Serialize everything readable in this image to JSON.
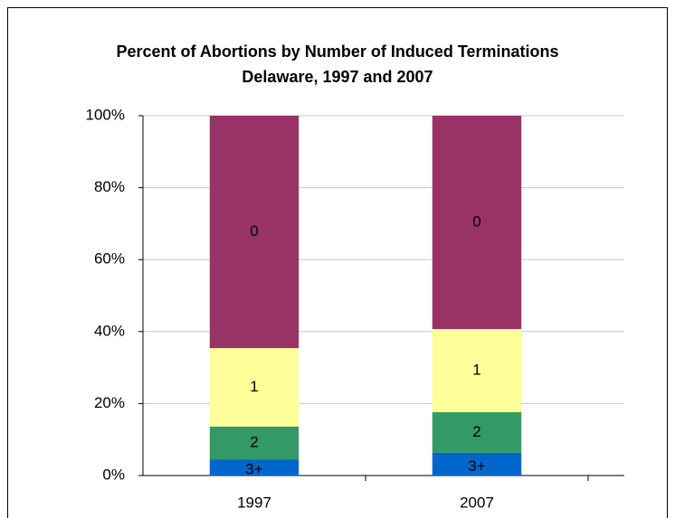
{
  "chart_data": {
    "type": "stacked_bar",
    "title": "Percent of Abortions by Number of Induced Terminations",
    "subtitle": "Delaware, 1997 and 2007",
    "categories": [
      "1997",
      "2007"
    ],
    "series": [
      {
        "name": "3+",
        "color": "#0066cc",
        "values": [
          4.5,
          6.3
        ]
      },
      {
        "name": "2",
        "color": "#339966",
        "values": [
          9.1,
          11.3
        ]
      },
      {
        "name": "1",
        "color": "#ffff99",
        "values": [
          21.8,
          23.1
        ]
      },
      {
        "name": "0",
        "color": "#993366",
        "values": [
          64.6,
          59.3
        ]
      }
    ],
    "ylim": [
      0,
      100
    ],
    "yticks": [
      {
        "value": 0,
        "label": "0%"
      },
      {
        "value": 20,
        "label": "20%"
      },
      {
        "value": 40,
        "label": "40%"
      },
      {
        "value": 60,
        "label": "60%"
      },
      {
        "value": 80,
        "label": "80%"
      },
      {
        "value": 100,
        "label": "100%"
      }
    ],
    "grid": true
  }
}
